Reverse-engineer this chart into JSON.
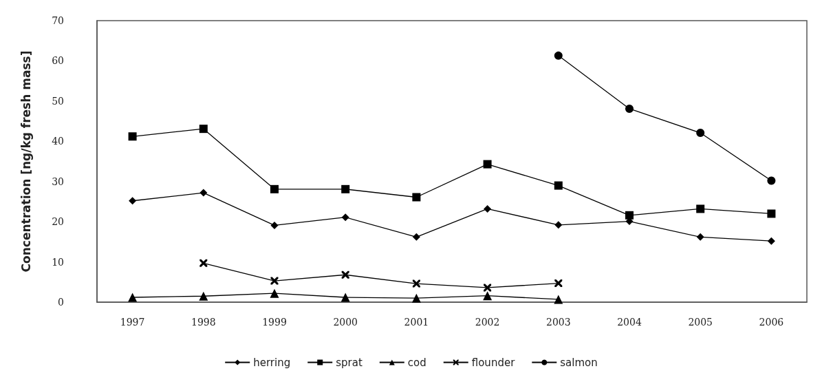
{
  "chart_data": {
    "type": "line",
    "ylabel": "Concentration [ng/kg fresh mass]",
    "categories": [
      "1997",
      "1998",
      "1999",
      "2000",
      "2001",
      "2002",
      "2003",
      "2004",
      "2005",
      "2006"
    ],
    "ylim": [
      0,
      70
    ],
    "yticks": [
      0,
      10,
      20,
      30,
      40,
      50,
      60,
      70
    ],
    "grid": false,
    "legend": "bottom",
    "line_style": "solid",
    "series": [
      {
        "name": "herring",
        "color": "#000000",
        "marker": "diamond",
        "values": [
          25.2,
          27.2,
          19.1,
          21.1,
          16.2,
          23.2,
          19.2,
          20.1,
          16.2,
          15.2
        ]
      },
      {
        "name": "sprat",
        "color": "#000000",
        "marker": "square",
        "values": [
          41.2,
          43.1,
          28.1,
          28.1,
          26.1,
          34.3,
          29.0,
          21.6,
          23.2,
          22.0
        ]
      },
      {
        "name": "cod",
        "color": "#000000",
        "marker": "triangle",
        "values": [
          1.2,
          1.5,
          2.2,
          1.2,
          1.0,
          1.6,
          0.7,
          null,
          null,
          null
        ]
      },
      {
        "name": "flounder",
        "color": "#000000",
        "marker": "cross",
        "values": [
          null,
          9.7,
          5.3,
          6.8,
          4.6,
          3.6,
          4.7,
          null,
          null,
          null
        ]
      },
      {
        "name": "salmon",
        "color": "#000000",
        "marker": "circle",
        "values": [
          null,
          null,
          null,
          null,
          null,
          null,
          61.3,
          48.1,
          42.1,
          30.2
        ]
      }
    ]
  }
}
